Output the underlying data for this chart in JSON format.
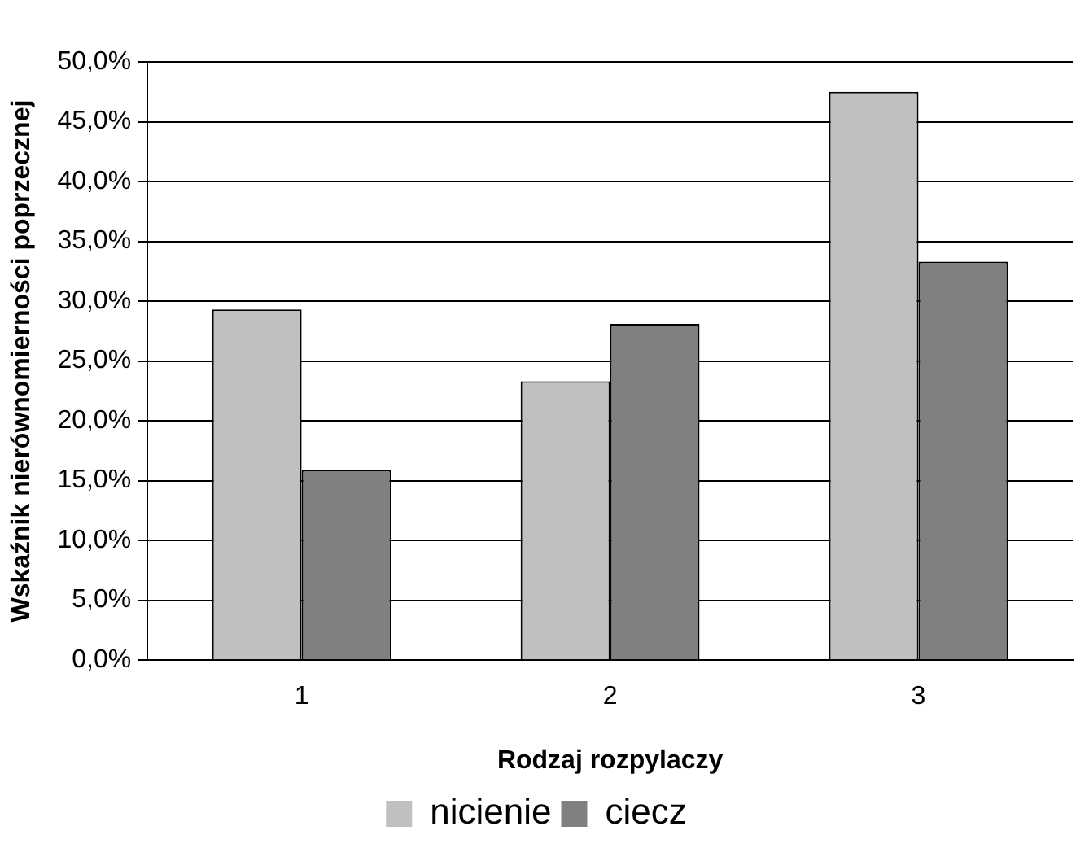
{
  "chart_data": {
    "type": "bar",
    "xlabel": "Rodzaj rozpylaczy",
    "ylabel": "Wskaźnik nierównomierności poprzecznej",
    "categories": [
      "1",
      "2",
      "3"
    ],
    "series": [
      {
        "name": "nicienie",
        "color": "#c0c0c0",
        "values": [
          29.3,
          23.3,
          47.5
        ]
      },
      {
        "name": "ciecz",
        "color": "#808080",
        "values": [
          15.9,
          28.1,
          33.3
        ]
      }
    ],
    "ylim": [
      0,
      50
    ],
    "yticks": [
      {
        "value": 0,
        "label": "0,0%"
      },
      {
        "value": 5,
        "label": "5,0%"
      },
      {
        "value": 10,
        "label": "10,0%"
      },
      {
        "value": 15,
        "label": "15,0%"
      },
      {
        "value": 20,
        "label": "20,0%"
      },
      {
        "value": 25,
        "label": "25,0%"
      },
      {
        "value": 30,
        "label": "30,0%"
      },
      {
        "value": 35,
        "label": "35,0%"
      },
      {
        "value": 40,
        "label": "40,0%"
      },
      {
        "value": 45,
        "label": "45,0%"
      },
      {
        "value": 50,
        "label": "50,0%"
      }
    ],
    "grid": "y",
    "legend": "bottom"
  }
}
